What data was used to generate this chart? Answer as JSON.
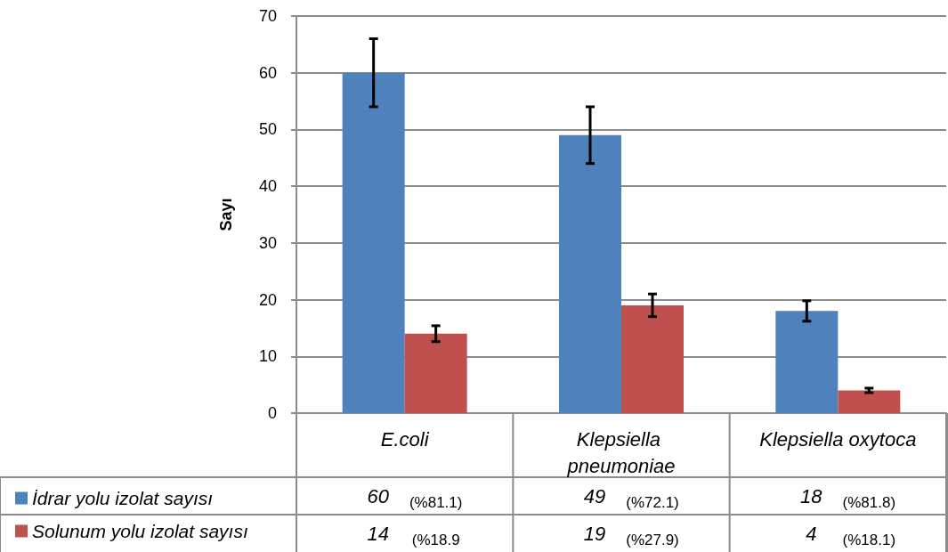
{
  "chart_data": {
    "type": "bar",
    "ylabel": "Sayı",
    "categories": [
      "E.coli",
      "Klepsiella pneumoniae",
      "Klepsiella oxytoca"
    ],
    "series": [
      {
        "name": "İdrar yolu izolat sayısı",
        "color": "#4f81bd",
        "values": [
          60,
          49,
          18
        ],
        "errors": [
          6,
          5,
          1.8
        ]
      },
      {
        "name": "Solunum yolu izolat sayısı",
        "color": "#c0504d",
        "values": [
          14,
          19,
          4
        ],
        "errors": [
          1.4,
          2,
          0.4
        ]
      }
    ],
    "ylim": [
      0,
      70
    ],
    "yticks": [
      0,
      10,
      20,
      30,
      40,
      50,
      60,
      70
    ],
    "grid": "y",
    "legend": "bottom left",
    "data_labels": true,
    "annotations": [
      "(%81.1)",
      "(%72.1)",
      "(%81.8)",
      "(%18.9",
      "(%27.9)",
      "(%18.1)"
    ]
  }
}
